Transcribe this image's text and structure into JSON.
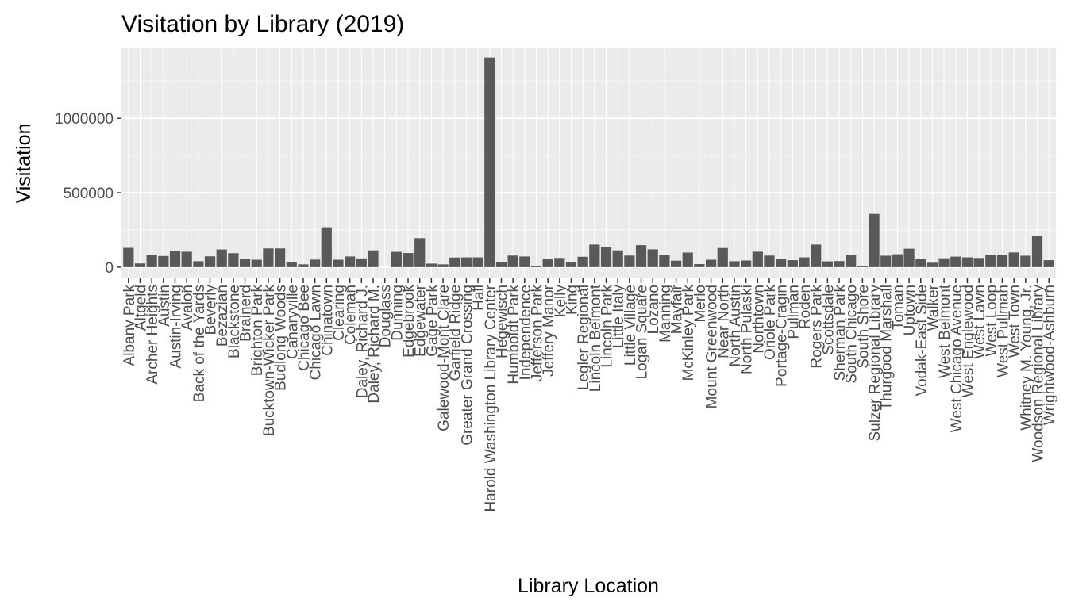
{
  "chart_data": {
    "type": "bar",
    "title": "Visitation by Library (2019)",
    "xlabel": "Library Location",
    "ylabel": "Visitation",
    "ylim": [
      -75000,
      1470000
    ],
    "yticks": [
      0,
      500000,
      1000000
    ],
    "ytick_labels": [
      "0",
      "500000",
      "1000000"
    ],
    "grid": true,
    "bar_color": "#595959",
    "panel_color": "#ebebeb",
    "categories": [
      "Albany Park",
      "Altgeld",
      "Archer Heights",
      "Austin",
      "Austin-Irving",
      "Avalon",
      "Back of the Yards",
      "Beverly",
      "Bezazian",
      "Blackstone",
      "Brainerd",
      "Brighton Park",
      "Bucktown-Wicker Park",
      "Budlong Woods",
      "Canaryville",
      "Chicago Bee",
      "Chicago Lawn",
      "Chinatown",
      "Clearing",
      "Coleman",
      "Daley, Richard J.",
      "Daley, Richard M.",
      "Douglass",
      "Dunning",
      "Edgebrook",
      "Edgewater",
      "Gage Park",
      "Galewood-Mont Clare",
      "Garfield Ridge",
      "Greater Grand Crossing",
      "Hall",
      "Harold Washington Library Center",
      "Hegewisch",
      "Humboldt Park",
      "Independence",
      "Jefferson Park",
      "Jeffery Manor",
      "Kelly",
      "King",
      "Legler Regional",
      "Lincoln Belmont",
      "Lincoln Park",
      "Little Italy",
      "Little Village",
      "Logan Square",
      "Lozano",
      "Manning",
      "Mayfair",
      "McKinley Park",
      "Merlo",
      "Mount Greenwood",
      "Near North",
      "North Austin",
      "North Pulaski",
      "Northtown",
      "Oriole Park",
      "Portage-Cragin",
      "Pullman",
      "Roden",
      "Rogers Park",
      "Scottsdale",
      "Sherman Park",
      "South Chicago",
      "South Shore",
      "Sulzer Regional Library",
      "Thurgood Marshall",
      "Toman",
      "Uptown",
      "Vodak-East Side",
      "Walker",
      "West Belmont",
      "West Chicago Avenue",
      "West Englewood",
      "West Lawn",
      "West Loop",
      "West Pullman",
      "West Town",
      "Whitney M. Young, Jr.",
      "Woodson Regional Library",
      "Wrightwood-Ashburn"
    ],
    "values": [
      130000,
      25000,
      82000,
      75000,
      107000,
      104000,
      40000,
      73000,
      119000,
      94000,
      56000,
      50000,
      126000,
      126000,
      34000,
      19000,
      51000,
      268000,
      50000,
      72000,
      59000,
      113000,
      0,
      103000,
      95000,
      195000,
      24000,
      19000,
      65000,
      66000,
      66000,
      1408000,
      32000,
      78000,
      72000,
      5000,
      57000,
      62000,
      35000,
      70000,
      152000,
      136000,
      113000,
      78000,
      148000,
      120000,
      83000,
      44000,
      98000,
      21000,
      50000,
      129000,
      40000,
      45000,
      104000,
      78000,
      53000,
      47000,
      66000,
      152000,
      39000,
      41000,
      82000,
      8000,
      358000,
      77000,
      87000,
      124000,
      54000,
      30000,
      60000,
      71000,
      66000,
      62000,
      80000,
      83000,
      99000,
      77000,
      208000,
      47000
    ]
  }
}
